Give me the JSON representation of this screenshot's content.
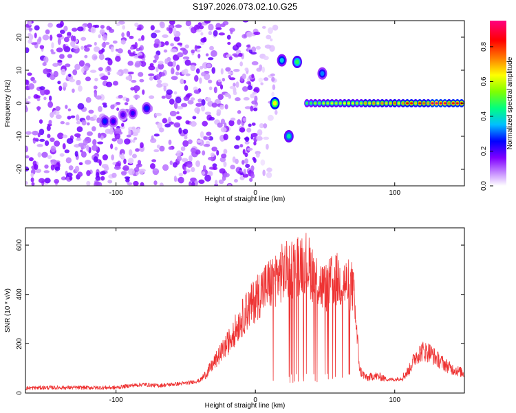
{
  "title": "S197.2026.073.02.10.G25",
  "chart_data": [
    {
      "type": "heatmap",
      "title": "S197.2026.073.02.10.G25",
      "xlabel": "Height of straight line (km)",
      "ylabel": "Frequency (Hz)",
      "xlim": [
        -165,
        150
      ],
      "ylim": [
        -25,
        25
      ],
      "x_ticks": [
        -100,
        0,
        100
      ],
      "x_tick_labels": [
        "-100",
        "0",
        "100"
      ],
      "y_ticks": [
        -20,
        -10,
        0,
        10,
        20
      ],
      "y_tick_labels": [
        "-20",
        "-10",
        "0",
        "10",
        "20"
      ],
      "colorbar": {
        "label": "Normalized spectral amplitude",
        "range": [
          0,
          0.95
        ],
        "ticks": [
          0.0,
          0.2,
          0.4,
          0.6,
          0.8
        ],
        "tick_labels": [
          "0.0",
          "0.2",
          "0.4",
          "0.6",
          "0.8"
        ],
        "colors": [
          "#ffffff",
          "#cc99ff",
          "#8000ff",
          "#0000ff",
          "#00bfff",
          "#00ff80",
          "#80ff00",
          "#ffff00",
          "#ff8000",
          "#ff0000",
          "#ff0080"
        ]
      },
      "features": [
        {
          "kind": "noise_region",
          "x_range": [
            -165,
            -80
          ],
          "freq_range": [
            -25,
            25
          ],
          "amplitude": 0.12
        },
        {
          "kind": "noise_region",
          "x_range": [
            -75,
            2
          ],
          "freq_range": [
            -25,
            25
          ],
          "amplitude": 0.12
        },
        {
          "kind": "noise_region",
          "x_range": [
            2,
            15
          ],
          "freq_range": [
            -25,
            25
          ],
          "amplitude": 0.06
        },
        {
          "kind": "spot",
          "x": -108,
          "freq": -5.5,
          "amplitude": 0.3
        },
        {
          "kind": "spot",
          "x": -102,
          "freq": -5.5,
          "amplitude": 0.25
        },
        {
          "kind": "spot",
          "x": -95,
          "freq": -3.5,
          "amplitude": 0.22
        },
        {
          "kind": "spot",
          "x": -88,
          "freq": -3,
          "amplitude": 0.25
        },
        {
          "kind": "spot",
          "x": -78,
          "freq": -1.5,
          "amplitude": 0.3
        },
        {
          "kind": "spot",
          "x": 14,
          "freq": 0,
          "amplitude": 0.65
        },
        {
          "kind": "spot",
          "x": 19,
          "freq": 13,
          "amplitude": 0.4
        },
        {
          "kind": "spot",
          "x": 24,
          "freq": -10,
          "amplitude": 0.45
        },
        {
          "kind": "spot",
          "x": 30,
          "freq": 12.5,
          "amplitude": 0.5
        },
        {
          "kind": "spot",
          "x": 48,
          "freq": 9,
          "amplitude": 0.35
        },
        {
          "kind": "band",
          "x_range": [
            37,
            150
          ],
          "freq": 0,
          "amplitude_range": [
            0.4,
            0.95
          ]
        }
      ]
    },
    {
      "type": "line",
      "xlabel": "Height of straight line (km)",
      "ylabel": "SNR (10 * v/v)",
      "xlim": [
        -165,
        150
      ],
      "ylim": [
        0,
        670
      ],
      "x_ticks": [
        -100,
        0,
        100
      ],
      "x_tick_labels": [
        "-100",
        "0",
        "100"
      ],
      "y_ticks": [
        0,
        200,
        400,
        600
      ],
      "y_tick_labels": [
        "0",
        "200",
        "400",
        "600"
      ],
      "series": [
        {
          "name": "SNR",
          "color": "#ee3333",
          "x": [
            -165,
            -150,
            -130,
            -110,
            -100,
            -90,
            -80,
            -70,
            -60,
            -50,
            -40,
            -35,
            -30,
            -25,
            -20,
            -15,
            -10,
            -5,
            0,
            5,
            10,
            15,
            20,
            25,
            30,
            35,
            40,
            45,
            50,
            55,
            60,
            65,
            70,
            75,
            80,
            85,
            90,
            95,
            100,
            105,
            110,
            115,
            120,
            125,
            130,
            135,
            140,
            145,
            150
          ],
          "values": [
            20,
            22,
            22,
            22,
            22,
            30,
            35,
            30,
            35,
            40,
            50,
            80,
            120,
            160,
            200,
            250,
            300,
            340,
            380,
            420,
            440,
            470,
            490,
            500,
            520,
            540,
            500,
            450,
            420,
            450,
            460,
            440,
            430,
            90,
            60,
            70,
            65,
            55,
            55,
            60,
            90,
            150,
            170,
            165,
            140,
            120,
            100,
            90,
            80
          ]
        }
      ]
    }
  ]
}
